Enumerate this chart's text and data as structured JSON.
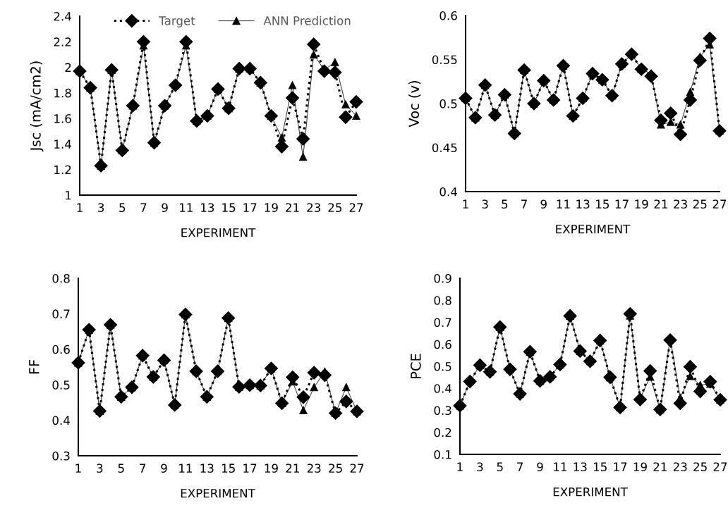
{
  "chart_data": [
    {
      "type": "line",
      "ylabel": "Jsc (mA/cm2)",
      "xlabel": "EXPERIMENT",
      "x": [
        1,
        2,
        3,
        4,
        5,
        6,
        7,
        8,
        9,
        10,
        11,
        12,
        13,
        14,
        15,
        16,
        17,
        18,
        19,
        20,
        21,
        22,
        23,
        24,
        25,
        26,
        27
      ],
      "xlim": [
        1,
        27
      ],
      "xticks": [
        1,
        3,
        5,
        7,
        9,
        11,
        13,
        15,
        17,
        19,
        21,
        23,
        25,
        27
      ],
      "ylim": [
        1,
        2.4
      ],
      "yticks": [
        1,
        1.2,
        1.4,
        1.6,
        1.8,
        2,
        2.2,
        2.4
      ],
      "grid": false,
      "legend": "top right",
      "series": [
        {
          "name": "Target",
          "color": "#000000",
          "marker": "diamond",
          "line_style": "dotted",
          "values": [
            1.97,
            1.84,
            1.23,
            1.98,
            1.35,
            1.7,
            2.2,
            1.41,
            1.7,
            1.86,
            2.2,
            1.58,
            1.62,
            1.83,
            1.68,
            1.99,
            1.99,
            1.88,
            1.62,
            1.38,
            1.76,
            1.44,
            2.18,
            1.97,
            1.96,
            1.61,
            1.73
          ]
        },
        {
          "name": "ANN Prediction",
          "color": "#000000",
          "marker": "triangle",
          "line_style": "solid",
          "values": [
            1.97,
            1.84,
            1.23,
            1.98,
            1.35,
            1.7,
            2.17,
            1.41,
            1.7,
            1.86,
            2.17,
            1.58,
            1.62,
            1.83,
            1.68,
            1.99,
            1.99,
            1.88,
            1.62,
            1.45,
            1.86,
            1.3,
            2.1,
            1.98,
            2.04,
            1.71,
            1.62
          ]
        }
      ]
    },
    {
      "type": "line",
      "ylabel": "Voc (v)",
      "xlabel": "EXPERIMENT",
      "x": [
        1,
        2,
        3,
        4,
        5,
        6,
        7,
        8,
        9,
        10,
        11,
        12,
        13,
        14,
        15,
        16,
        17,
        18,
        19,
        20,
        21,
        22,
        23,
        24,
        25,
        26,
        27
      ],
      "xlim": [
        1,
        27
      ],
      "xticks": [
        1,
        3,
        5,
        7,
        9,
        11,
        13,
        15,
        17,
        19,
        21,
        23,
        25,
        27
      ],
      "ylim": [
        0.4,
        0.6
      ],
      "yticks": [
        0.4,
        0.45,
        0.5,
        0.55,
        0.6
      ],
      "grid": false,
      "series": [
        {
          "color": "#000000",
          "marker": "diamond",
          "line_style": "dotted",
          "values": [
            0.506,
            0.484,
            0.521,
            0.487,
            0.51,
            0.466,
            0.538,
            0.5,
            0.526,
            0.504,
            0.543,
            0.486,
            0.506,
            0.534,
            0.527,
            0.509,
            0.545,
            0.556,
            0.539,
            0.531,
            0.481,
            0.489,
            0.465,
            0.504,
            0.549,
            0.574,
            0.469
          ]
        },
        {
          "color": "#000000",
          "marker": "triangle",
          "line_style": "solid",
          "values": [
            0.506,
            0.484,
            0.521,
            0.487,
            0.51,
            0.466,
            0.538,
            0.5,
            0.526,
            0.504,
            0.543,
            0.486,
            0.506,
            0.534,
            0.527,
            0.509,
            0.545,
            0.556,
            0.539,
            0.534,
            0.476,
            0.479,
            0.476,
            0.513,
            0.553,
            0.567,
            0.469
          ]
        }
      ]
    },
    {
      "type": "line",
      "ylabel": "FF",
      "xlabel": "EXPERIMENT",
      "x": [
        1,
        2,
        3,
        4,
        5,
        6,
        7,
        8,
        9,
        10,
        11,
        12,
        13,
        14,
        15,
        16,
        17,
        18,
        19,
        20,
        21,
        22,
        23,
        24,
        25,
        26,
        27
      ],
      "xlim": [
        1,
        27
      ],
      "xticks": [
        1,
        3,
        5,
        7,
        9,
        11,
        13,
        15,
        17,
        19,
        21,
        23,
        25,
        27
      ],
      "ylim": [
        0.3,
        0.8
      ],
      "yticks": [
        0.3,
        0.4,
        0.5,
        0.6,
        0.7,
        0.8
      ],
      "grid": false,
      "series": [
        {
          "color": "#000000",
          "marker": "diamond",
          "line_style": "dotted",
          "values": [
            0.562,
            0.655,
            0.426,
            0.669,
            0.466,
            0.493,
            0.582,
            0.522,
            0.569,
            0.443,
            0.698,
            0.538,
            0.466,
            0.538,
            0.688,
            0.494,
            0.499,
            0.498,
            0.546,
            0.448,
            0.521,
            0.465,
            0.534,
            0.527,
            0.42,
            0.453,
            0.425
          ]
        },
        {
          "color": "#000000",
          "marker": "triangle",
          "line_style": "solid",
          "values": [
            0.562,
            0.655,
            0.426,
            0.669,
            0.466,
            0.493,
            0.582,
            0.522,
            0.569,
            0.443,
            0.698,
            0.538,
            0.466,
            0.538,
            0.688,
            0.494,
            0.499,
            0.498,
            0.546,
            0.448,
            0.509,
            0.428,
            0.493,
            0.537,
            0.42,
            0.493,
            0.425
          ]
        }
      ]
    },
    {
      "type": "line",
      "ylabel": "PCE",
      "xlabel": "EXPERIMENT",
      "x": [
        1,
        2,
        3,
        4,
        5,
        6,
        7,
        8,
        9,
        10,
        11,
        12,
        13,
        14,
        15,
        16,
        17,
        18,
        19,
        20,
        21,
        22,
        23,
        24,
        25,
        26,
        27
      ],
      "xlim": [
        1,
        27
      ],
      "xticks": [
        1,
        3,
        5,
        7,
        9,
        11,
        13,
        15,
        17,
        19,
        21,
        23,
        25,
        27
      ],
      "ylim": [
        0.1,
        0.9
      ],
      "yticks": [
        0.1,
        0.2,
        0.3,
        0.4,
        0.5,
        0.6,
        0.7,
        0.8,
        0.9
      ],
      "grid": false,
      "series": [
        {
          "color": "#000000",
          "marker": "diamond",
          "line_style": "dotted",
          "values": [
            0.321,
            0.431,
            0.505,
            0.475,
            0.678,
            0.486,
            0.375,
            0.566,
            0.434,
            0.452,
            0.508,
            0.729,
            0.569,
            0.523,
            0.617,
            0.45,
            0.313,
            0.738,
            0.349,
            0.479,
            0.304,
            0.619,
            0.332,
            0.498,
            0.386,
            0.43,
            0.348
          ]
        },
        {
          "color": "#000000",
          "marker": "triangle",
          "line_style": "solid",
          "values": [
            0.321,
            0.431,
            0.505,
            0.475,
            0.678,
            0.486,
            0.375,
            0.566,
            0.434,
            0.452,
            0.508,
            0.729,
            0.569,
            0.523,
            0.617,
            0.45,
            0.313,
            0.73,
            0.355,
            0.452,
            0.304,
            0.628,
            0.357,
            0.455,
            0.415,
            0.42,
            0.348
          ]
        }
      ]
    }
  ]
}
